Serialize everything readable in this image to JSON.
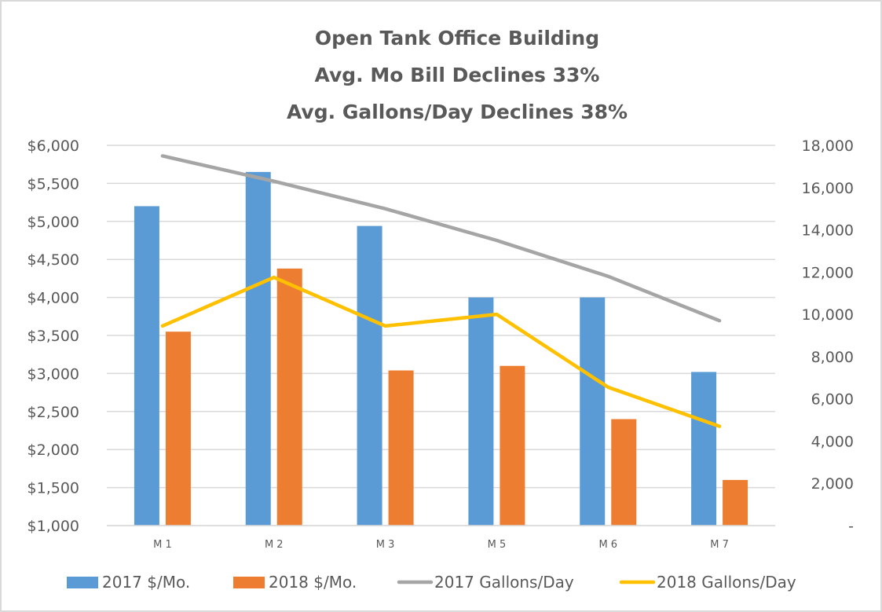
{
  "chart_data": {
    "type": "bar",
    "title_lines": [
      "Open Tank Office Building",
      "Avg. Mo Bill Declines 33%",
      "Avg. Gallons/Day Declines 38%"
    ],
    "categories": [
      "M 1",
      "M 2",
      "M 3",
      "M 5",
      "M 6",
      "M 7"
    ],
    "series": [
      {
        "name": "2017 $/Mo.",
        "kind": "bar",
        "axis": "left",
        "color": "#5b9bd5",
        "values": [
          5200,
          5650,
          4940,
          4000,
          4000,
          3020
        ]
      },
      {
        "name": "2018 $/Mo.",
        "kind": "bar",
        "axis": "left",
        "color": "#ed7d31",
        "values": [
          3550,
          4380,
          3040,
          3100,
          2400,
          1600
        ]
      },
      {
        "name": "2017 Gallons/Day",
        "kind": "line",
        "axis": "right",
        "color": "#a5a5a5",
        "values": [
          17500,
          16300,
          15000,
          13500,
          11800,
          9700
        ]
      },
      {
        "name": "2018 Gallons/Day",
        "kind": "line",
        "axis": "right",
        "color": "#ffc000",
        "values": [
          9450,
          11750,
          9450,
          10000,
          6550,
          4700
        ]
      }
    ],
    "xlabel": "",
    "ylabel": "",
    "y_left": {
      "ylim": [
        1000,
        6000
      ],
      "ticks": [
        1000,
        1500,
        2000,
        2500,
        3000,
        3500,
        4000,
        4500,
        5000,
        5500,
        6000
      ],
      "tick_labels": [
        "$1,000",
        "$1,500",
        "$2,000",
        "$2,500",
        "$3,000",
        "$3,500",
        "$4,000",
        "$4,500",
        "$5,000",
        "$5,500",
        "$6,000"
      ]
    },
    "y_right": {
      "ylim": [
        0,
        18000
      ],
      "ticks": [
        0,
        2000,
        4000,
        6000,
        8000,
        10000,
        12000,
        14000,
        16000,
        18000
      ],
      "tick_labels": [
        "-",
        "2,000",
        "4,000",
        "6,000",
        "8,000",
        "10,000",
        "12,000",
        "14,000",
        "16,000",
        "18,000"
      ]
    },
    "grid": true,
    "legend_position": "bottom",
    "colors": {
      "grid": "#d9d9d9",
      "text": "#595959",
      "title": "#595959",
      "border": "#d9d9d9"
    }
  }
}
